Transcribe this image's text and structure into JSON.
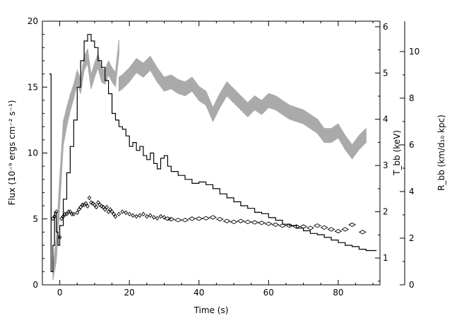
{
  "chart_data": {
    "type": "line",
    "title": "",
    "xlabel": "Time (s)",
    "ylabel_left": "Flux (10⁻⁹ ergs cm⁻² s⁻¹)",
    "ylabel_right1": "T_bb (keV)",
    "ylabel_right2": "R_bb (km/d₁₀ kpc)",
    "xlim": [
      -5,
      92
    ],
    "ylim_left": [
      0,
      20
    ],
    "ylim_right1": [
      0.42,
      6.12
    ],
    "ylim_right2": [
      0,
      11.3
    ],
    "x_ticks": [
      0,
      20,
      40,
      60,
      80
    ],
    "x_tick_labels": [
      "0",
      "20",
      "40",
      "60",
      "80"
    ],
    "y_left_ticks": [
      0,
      5,
      10,
      15,
      20
    ],
    "y_left_tick_labels": [
      "0",
      "5",
      "10",
      "15",
      "20"
    ],
    "y_right1_ticks": [
      1,
      2,
      3,
      4,
      5,
      6
    ],
    "y_right1_tick_labels": [
      "1",
      "2",
      "3",
      "4",
      "5",
      "6"
    ],
    "y_right2_ticks": [
      0,
      2,
      4,
      6,
      8,
      10
    ],
    "y_right2_tick_labels": [
      "0",
      "2",
      "4",
      "6",
      "8",
      "10"
    ],
    "series": [
      {
        "role": "flux",
        "axis": "left",
        "style": "black histogram",
        "color": "#000000",
        "x": [
          -3.0,
          -2.5,
          -2.0,
          -1.5,
          -1.0,
          -0.5,
          0.0,
          1.0,
          2.0,
          3.0,
          4.0,
          5.0,
          6.0,
          7.0,
          8.0,
          9.0,
          10.0,
          11.0,
          12.0,
          13.0,
          14.0,
          15.0,
          16.0,
          17.0,
          18.0,
          19.0,
          20.0,
          21.0,
          22.0,
          23.0,
          24.0,
          25.0,
          26.0,
          27.0,
          28.0,
          29.0,
          30.0,
          31.0,
          32.0,
          34.0,
          36.0,
          38.0,
          40.0,
          42.0,
          44.0,
          46.0,
          48.0,
          50.0,
          52.0,
          54.0,
          56.0,
          58.0,
          60.0,
          62.0,
          64.0,
          66.0,
          68.0,
          70.0,
          72.0,
          74.0,
          76.0,
          78.0,
          80.0,
          82.0,
          84.0,
          86.0,
          88.0,
          90.0
        ],
        "y": [
          16.0,
          1.0,
          3.0,
          5.5,
          4.0,
          3.0,
          4.5,
          6.5,
          8.5,
          10.5,
          12.5,
          15.0,
          17.0,
          18.5,
          19.0,
          18.5,
          18.0,
          17.0,
          16.5,
          15.5,
          14.5,
          13.0,
          12.5,
          12.0,
          11.8,
          11.3,
          10.5,
          10.8,
          10.2,
          10.5,
          9.8,
          9.5,
          10.0,
          9.2,
          8.8,
          9.6,
          9.8,
          9.0,
          8.6,
          8.3,
          8.0,
          7.7,
          7.8,
          7.6,
          7.3,
          6.9,
          6.6,
          6.3,
          6.0,
          5.8,
          5.5,
          5.4,
          5.1,
          4.9,
          4.6,
          4.5,
          4.3,
          4.1,
          3.9,
          3.8,
          3.6,
          3.4,
          3.2,
          3.0,
          2.9,
          2.7,
          2.6,
          2.6
        ]
      },
      {
        "role": "temperature",
        "axis": "right1",
        "style": "diamond markers",
        "color": "#000000",
        "x": [
          -2.0,
          -1.5,
          -1.0,
          0.0,
          0.5,
          1.0,
          1.5,
          2.0,
          2.5,
          3.0,
          3.5,
          4.0,
          5.0,
          5.5,
          6.0,
          6.5,
          7.0,
          7.5,
          8.0,
          8.5,
          9.0,
          9.5,
          10.0,
          10.5,
          11.0,
          11.5,
          12.0,
          12.5,
          13.0,
          13.5,
          14.0,
          14.5,
          15.0,
          15.5,
          16.0,
          17.0,
          18.0,
          19.0,
          20.0,
          21.0,
          22.0,
          23.0,
          24.0,
          25.0,
          26.0,
          27.0,
          28.0,
          29.0,
          30.0,
          31.0,
          32.0,
          34.0,
          36.0,
          38.0,
          40.0,
          42.0,
          44.0,
          46.0,
          48.0,
          50.0,
          52.0,
          54.0,
          56.0,
          58.0,
          60.0,
          62.0,
          64.0,
          66.0,
          68.0,
          70.0,
          72.0,
          74.0,
          76.0,
          78.0,
          80.0,
          82.0,
          84.0,
          87.0
        ],
        "y": [
          1.85,
          1.9,
          2.0,
          1.45,
          1.85,
          1.9,
          1.95,
          1.95,
          2.0,
          2.0,
          1.95,
          1.95,
          1.98,
          2.05,
          2.1,
          2.15,
          2.15,
          2.18,
          2.12,
          2.3,
          2.2,
          2.18,
          2.15,
          2.1,
          2.2,
          2.15,
          2.12,
          2.1,
          2.05,
          2.1,
          2.0,
          2.05,
          2.0,
          1.95,
          1.9,
          1.95,
          2.0,
          1.98,
          1.95,
          1.92,
          1.9,
          1.92,
          1.95,
          1.9,
          1.92,
          1.88,
          1.86,
          1.9,
          1.88,
          1.85,
          1.84,
          1.82,
          1.82,
          1.85,
          1.85,
          1.86,
          1.88,
          1.84,
          1.8,
          1.78,
          1.8,
          1.78,
          1.77,
          1.76,
          1.74,
          1.72,
          1.7,
          1.7,
          1.68,
          1.68,
          1.65,
          1.7,
          1.66,
          1.62,
          1.58,
          1.62,
          1.72,
          1.56
        ]
      },
      {
        "role": "radius",
        "axis": "right2",
        "style": "grey band",
        "color": "#aaaaaa",
        "x": [
          -2.0,
          -1.0,
          0.0,
          1.0,
          2.0,
          3.0,
          4.0,
          5.0,
          6.0,
          7.0,
          8.0,
          9.0,
          10.0,
          11.0,
          12.0,
          13.0,
          14.0,
          15.0,
          16.0,
          17.0,
          17.0,
          18.0,
          20.0,
          22.0,
          24.0,
          26.0,
          28.0,
          30.0,
          32.0,
          34.0,
          36.0,
          38.0,
          40.0,
          42.0,
          44.0,
          46.0,
          48.0,
          50.0,
          52.0,
          54.0,
          56.0,
          58.0,
          60.0,
          62.0,
          64.0,
          66.0,
          68.0,
          70.0,
          72.0,
          74.0,
          76.0,
          78.0,
          80.0,
          82.0,
          84.0,
          86.0,
          88.0
        ],
        "y": [
          0.5,
          1.5,
          4.0,
          6.5,
          7.2,
          7.8,
          8.3,
          8.9,
          8.5,
          9.5,
          9.8,
          8.7,
          9.2,
          9.6,
          9.0,
          8.9,
          9.3,
          9.0,
          8.8,
          10.2,
          8.6,
          8.7,
          9.0,
          9.4,
          9.2,
          9.5,
          9.0,
          8.6,
          8.7,
          8.5,
          8.4,
          8.6,
          8.2,
          8.0,
          7.3,
          7.9,
          8.4,
          8.1,
          7.8,
          7.5,
          7.8,
          7.6,
          7.9,
          7.8,
          7.6,
          7.4,
          7.3,
          7.2,
          7.0,
          6.8,
          6.4,
          6.4,
          6.6,
          6.1,
          5.7,
          6.1,
          6.4
        ],
        "half_width": [
          0.3,
          0.5,
          0.6,
          0.5,
          0.4,
          0.35,
          0.3,
          0.3,
          0.3,
          0.3,
          0.3,
          0.3,
          0.3,
          0.3,
          0.3,
          0.3,
          0.3,
          0.3,
          0.3,
          0.3,
          0.3,
          0.3,
          0.3,
          0.3,
          0.3,
          0.3,
          0.3,
          0.3,
          0.3,
          0.3,
          0.3,
          0.3,
          0.3,
          0.3,
          0.3,
          0.3,
          0.3,
          0.3,
          0.3,
          0.3,
          0.3,
          0.3,
          0.3,
          0.3,
          0.3,
          0.3,
          0.3,
          0.3,
          0.3,
          0.3,
          0.3,
          0.3,
          0.3,
          0.3,
          0.3,
          0.3,
          0.3
        ]
      }
    ]
  }
}
